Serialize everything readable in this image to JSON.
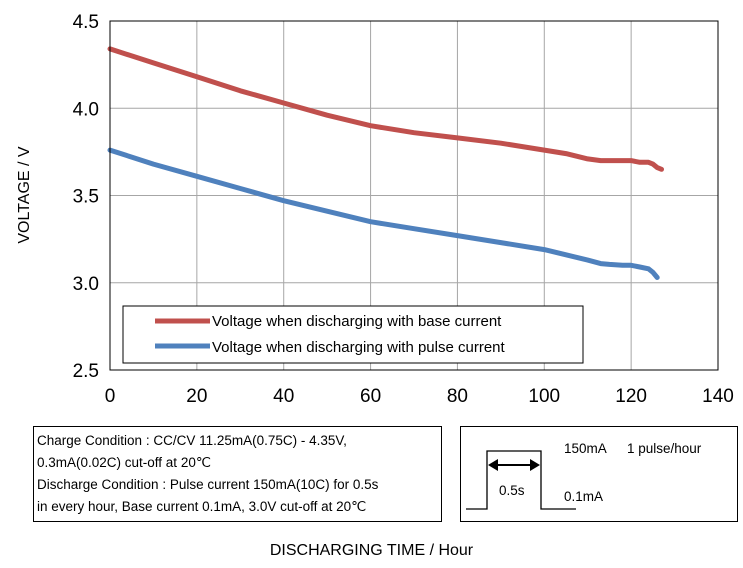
{
  "chart_data": {
    "type": "line",
    "xlabel": "DISCHARGING TIME / Hour",
    "ylabel": "VOLTAGE / V",
    "xlim": [
      0,
      140
    ],
    "ylim": [
      2.5,
      4.5
    ],
    "xticks": [
      0,
      20,
      40,
      60,
      80,
      100,
      120,
      140
    ],
    "yticks": [
      2.5,
      3.0,
      3.5,
      4.0,
      4.5
    ],
    "ytick_labels": [
      "2.5",
      "3.0",
      "3.5",
      "4.0",
      "4.5"
    ],
    "grid": true,
    "legend_position": "lower-left",
    "series": [
      {
        "name": "Voltage when discharging with base current",
        "color": "#c0504d",
        "x": [
          0,
          5,
          10,
          20,
          30,
          40,
          50,
          60,
          70,
          80,
          90,
          100,
          105,
          110,
          113,
          115,
          118,
          120,
          122,
          124,
          125,
          126,
          127
        ],
        "y": [
          4.34,
          4.3,
          4.26,
          4.18,
          4.1,
          4.03,
          3.96,
          3.9,
          3.86,
          3.83,
          3.8,
          3.76,
          3.74,
          3.71,
          3.7,
          3.7,
          3.7,
          3.7,
          3.69,
          3.69,
          3.68,
          3.66,
          3.65
        ]
      },
      {
        "name": "Voltage when discharging with pulse current",
        "color": "#4f81bd",
        "x": [
          0,
          5,
          10,
          20,
          30,
          40,
          50,
          60,
          70,
          80,
          90,
          100,
          105,
          110,
          113,
          115,
          118,
          120,
          122,
          124,
          125,
          126
        ],
        "y": [
          3.76,
          3.72,
          3.68,
          3.61,
          3.54,
          3.47,
          3.41,
          3.35,
          3.31,
          3.27,
          3.23,
          3.19,
          3.16,
          3.13,
          3.11,
          3.105,
          3.1,
          3.1,
          3.09,
          3.08,
          3.06,
          3.03
        ]
      }
    ]
  },
  "notes": {
    "line1": "Charge Condition : CC/CV 11.25mA(0.75C) - 4.35V,",
    "line2": "0.3mA(0.02C) cut-off at 20℃",
    "line3": "Discharge Condition : Pulse current 150mA(10C) for 0.5s",
    "line4": "in every hour, Base  current 0.1mA, 3.0V cut-off at 20℃"
  },
  "pulse_diagram": {
    "high_label": "150mA",
    "rate_label": "1 pulse/hour",
    "width_label": "0.5s",
    "low_label": "0.1mA"
  }
}
